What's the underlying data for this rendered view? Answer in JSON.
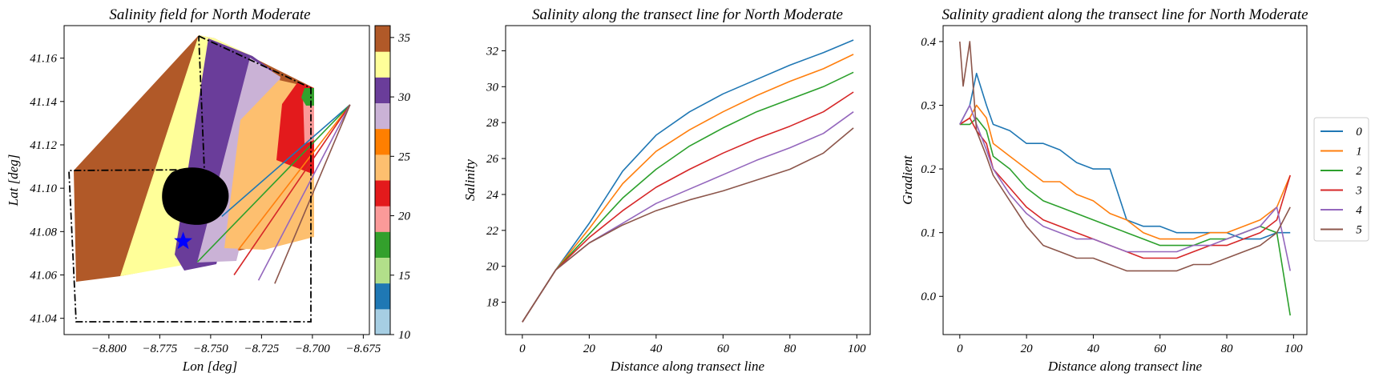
{
  "palette": [
    "#1f77b4",
    "#ff7f0e",
    "#2ca02c",
    "#d62728",
    "#9467bd",
    "#8c564b"
  ],
  "colorbar_colors": [
    "#a6cee3",
    "#1f78b4",
    "#b2df8a",
    "#33a02c",
    "#fb9a99",
    "#e31a1c",
    "#fdbf6f",
    "#ff7f00",
    "#cab2d6",
    "#6a3d9a",
    "#ffff99",
    "#b15928"
  ],
  "chart_data": [
    {
      "type": "heatmap",
      "title": "Salinity field for North Moderate",
      "xlabel": "Lon [deg]",
      "ylabel": "Lat [deg]",
      "xlim": [
        -8.822,
        -8.672
      ],
      "ylim": [
        41.0325,
        41.175
      ],
      "xticks": [
        "-8.800",
        "-8.775",
        "-8.750",
        "-8.725",
        "-8.700",
        "-8.675"
      ],
      "yticks": [
        "41.04",
        "41.06",
        "41.08",
        "41.10",
        "41.12",
        "41.14",
        "41.16"
      ],
      "colorbar": {
        "ticks": [
          "10",
          "15",
          "20",
          "25",
          "30",
          "35"
        ],
        "range": [
          10,
          36
        ],
        "levels": 12
      },
      "marker": {
        "symbol": "star",
        "color": "#0000ff",
        "lon": -8.7635,
        "lat": 41.0755
      },
      "transect_origin": {
        "lon": -8.6815,
        "lat": 41.1385
      },
      "transect_ends": [
        {
          "lon": -8.7445,
          "lat": 41.087
        },
        {
          "lon": -8.7365,
          "lat": 41.0715
        },
        {
          "lon": -8.7565,
          "lat": 41.066
        },
        {
          "lon": -8.7385,
          "lat": 41.06
        },
        {
          "lon": -8.7265,
          "lat": 41.0575
        },
        {
          "lon": -8.7185,
          "lat": 41.056
        }
      ]
    },
    {
      "type": "line",
      "title": "Salinity along the transect line for North Moderate",
      "xlabel": "Distance along transect line",
      "ylabel": "Salinity",
      "xlim": [
        -5,
        104
      ],
      "ylim": [
        16.2,
        33.4
      ],
      "xticks": [
        "0",
        "20",
        "40",
        "60",
        "80",
        "100"
      ],
      "yticks": [
        "18",
        "20",
        "22",
        "24",
        "26",
        "28",
        "30",
        "32"
      ],
      "x": [
        0,
        10,
        20,
        30,
        40,
        50,
        60,
        70,
        80,
        90,
        99
      ],
      "series": [
        {
          "values": [
            16.9,
            19.8,
            22.4,
            25.3,
            27.3,
            28.6,
            29.6,
            30.4,
            31.2,
            31.9,
            32.6
          ]
        },
        {
          "values": [
            16.9,
            19.8,
            22.1,
            24.6,
            26.4,
            27.6,
            28.6,
            29.5,
            30.3,
            31.0,
            31.8
          ]
        },
        {
          "values": [
            16.9,
            19.8,
            21.8,
            23.8,
            25.4,
            26.7,
            27.7,
            28.6,
            29.3,
            30.0,
            30.8
          ]
        },
        {
          "values": [
            16.9,
            19.8,
            21.6,
            23.1,
            24.4,
            25.4,
            26.3,
            27.1,
            27.8,
            28.6,
            29.7
          ]
        },
        {
          "values": [
            16.9,
            19.8,
            21.3,
            22.4,
            23.5,
            24.3,
            25.1,
            25.9,
            26.6,
            27.4,
            28.6
          ]
        },
        {
          "values": [
            16.9,
            19.8,
            21.3,
            22.3,
            23.1,
            23.7,
            24.2,
            24.8,
            25.4,
            26.3,
            27.7
          ]
        }
      ]
    },
    {
      "type": "line",
      "title": "Salinity gradient along the transect line for North Moderate",
      "xlabel": "Distance along transect line",
      "ylabel": "Gradient",
      "xlim": [
        -5,
        104
      ],
      "ylim": [
        -0.06,
        0.425
      ],
      "xticks": [
        "0",
        "20",
        "40",
        "60",
        "80",
        "100"
      ],
      "yticks": [
        "0.0",
        "0.1",
        "0.2",
        "0.3",
        "0.4"
      ],
      "legend_position": "outside-right",
      "series": [
        {
          "name": "0",
          "x": [
            0,
            3,
            5,
            8,
            10,
            15,
            20,
            25,
            30,
            35,
            40,
            45,
            50,
            55,
            60,
            65,
            70,
            75,
            80,
            85,
            90,
            95,
            99
          ],
          "values": [
            0.27,
            0.3,
            0.35,
            0.3,
            0.27,
            0.26,
            0.24,
            0.24,
            0.23,
            0.21,
            0.2,
            0.2,
            0.12,
            0.11,
            0.11,
            0.1,
            0.1,
            0.1,
            0.1,
            0.09,
            0.09,
            0.1,
            0.1
          ]
        },
        {
          "name": "1",
          "x": [
            0,
            3,
            5,
            8,
            10,
            15,
            20,
            25,
            30,
            35,
            40,
            45,
            50,
            55,
            60,
            65,
            70,
            75,
            80,
            85,
            90,
            95,
            99
          ],
          "values": [
            0.27,
            0.28,
            0.3,
            0.28,
            0.24,
            0.22,
            0.2,
            0.18,
            0.18,
            0.16,
            0.15,
            0.13,
            0.12,
            0.1,
            0.09,
            0.09,
            0.09,
            0.1,
            0.1,
            0.11,
            0.12,
            0.14,
            0.19
          ]
        },
        {
          "name": "2",
          "x": [
            0,
            3,
            5,
            8,
            10,
            15,
            20,
            25,
            30,
            35,
            40,
            45,
            50,
            55,
            60,
            65,
            70,
            75,
            80,
            85,
            90,
            95,
            99
          ],
          "values": [
            0.27,
            0.27,
            0.28,
            0.26,
            0.22,
            0.2,
            0.17,
            0.15,
            0.14,
            0.13,
            0.12,
            0.11,
            0.1,
            0.09,
            0.08,
            0.08,
            0.08,
            0.09,
            0.09,
            0.1,
            0.11,
            0.1,
            -0.03
          ]
        },
        {
          "name": "3",
          "x": [
            0,
            3,
            5,
            8,
            10,
            15,
            20,
            25,
            30,
            35,
            40,
            45,
            50,
            55,
            60,
            65,
            70,
            75,
            80,
            85,
            90,
            95,
            99
          ],
          "values": [
            0.27,
            0.28,
            0.26,
            0.24,
            0.2,
            0.17,
            0.14,
            0.12,
            0.11,
            0.1,
            0.09,
            0.08,
            0.07,
            0.06,
            0.06,
            0.06,
            0.07,
            0.08,
            0.08,
            0.09,
            0.1,
            0.12,
            0.19
          ]
        },
        {
          "name": "4",
          "x": [
            0,
            3,
            5,
            8,
            10,
            15,
            20,
            25,
            30,
            35,
            40,
            45,
            50,
            55,
            60,
            65,
            70,
            75,
            80,
            85,
            90,
            95,
            99
          ],
          "values": [
            0.27,
            0.3,
            0.27,
            0.23,
            0.2,
            0.16,
            0.13,
            0.11,
            0.1,
            0.09,
            0.09,
            0.08,
            0.07,
            0.07,
            0.07,
            0.07,
            0.08,
            0.08,
            0.09,
            0.1,
            0.11,
            0.14,
            0.04
          ]
        },
        {
          "name": "5",
          "x": [
            0,
            1,
            3,
            5,
            8,
            10,
            15,
            20,
            25,
            30,
            35,
            40,
            45,
            50,
            55,
            60,
            65,
            70,
            75,
            80,
            85,
            90,
            95,
            99
          ],
          "values": [
            0.4,
            0.33,
            0.4,
            0.26,
            0.22,
            0.19,
            0.15,
            0.11,
            0.08,
            0.07,
            0.06,
            0.06,
            0.05,
            0.04,
            0.04,
            0.04,
            0.04,
            0.05,
            0.05,
            0.06,
            0.07,
            0.08,
            0.1,
            0.14
          ]
        }
      ]
    }
  ]
}
